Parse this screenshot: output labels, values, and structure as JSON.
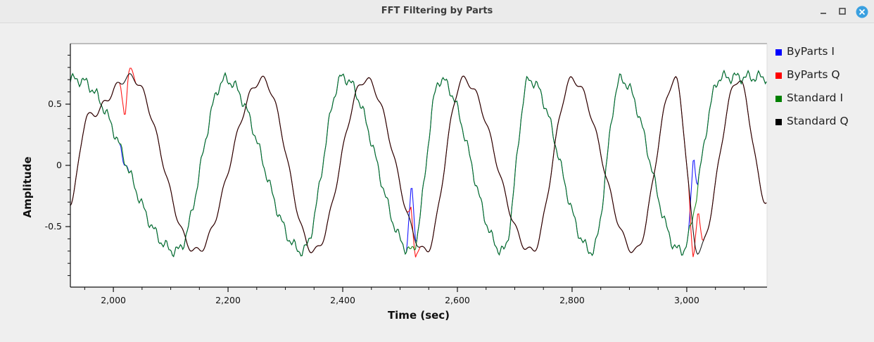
{
  "window": {
    "title": "FFT Filtering by Parts",
    "minimize_icon": "minimize-icon",
    "maximize_icon": "maximize-icon",
    "close_icon": "close-icon",
    "close_color": "#3aa0e0"
  },
  "chart_data": {
    "type": "line",
    "title": "",
    "xlabel": "Time (sec)",
    "ylabel": "Amplitude",
    "xlim": [
      1925,
      3140
    ],
    "ylim": [
      -1.0,
      1.0
    ],
    "xticks": [
      2000,
      2200,
      2400,
      2600,
      2800,
      3000
    ],
    "xtick_labels": [
      "2,000",
      "2,200",
      "2,400",
      "2,600",
      "2,800",
      "3,000"
    ],
    "yticks": [
      0.5,
      0,
      -0.5
    ],
    "ytick_labels": [
      "0.5",
      "0",
      "-0.5"
    ],
    "grid": false,
    "legend_position": "right",
    "series": [
      {
        "name": "ByParts I",
        "color": "#0000ff"
      },
      {
        "name": "ByParts Q",
        "color": "#ff0000"
      },
      {
        "name": "Standard I",
        "color": "#008000"
      },
      {
        "name": "Standard Q",
        "color": "#000000"
      }
    ],
    "signal": {
      "i_peak_times": [
        1937,
        2110,
        2195,
        2330,
        2400,
        2520,
        2570,
        2680,
        2725,
        2835,
        2885,
        2990,
        3060
      ],
      "i_peak_values": [
        0.7,
        -0.7,
        0.7,
        -0.7,
        0.72,
        -0.7,
        0.7,
        -0.7,
        0.7,
        -0.7,
        0.7,
        -0.7,
        0.72
      ],
      "q_peak_times": [
        1925,
        1955,
        2030,
        2145,
        2260,
        2350,
        2440,
        2545,
        2610,
        2730,
        2800,
        2910,
        2980,
        3020,
        3090,
        3140
      ],
      "q_peak_values": [
        -0.3,
        0.4,
        0.72,
        -0.7,
        0.7,
        -0.7,
        0.7,
        -0.7,
        0.7,
        -0.7,
        0.7,
        -0.7,
        0.7,
        -0.7,
        0.7,
        -0.3
      ],
      "byparts_glitches": [
        {
          "t": 2020,
          "i": 0.0,
          "q": 0.38
        },
        {
          "t": 2030,
          "q": 0.8
        },
        {
          "t": 2520,
          "i": -0.12,
          "q": -0.32
        },
        {
          "t": 2527,
          "q": -0.75
        },
        {
          "t": 3012,
          "i": 0.1,
          "q": -0.78
        },
        {
          "t": 3020,
          "q": -0.35
        }
      ]
    }
  }
}
